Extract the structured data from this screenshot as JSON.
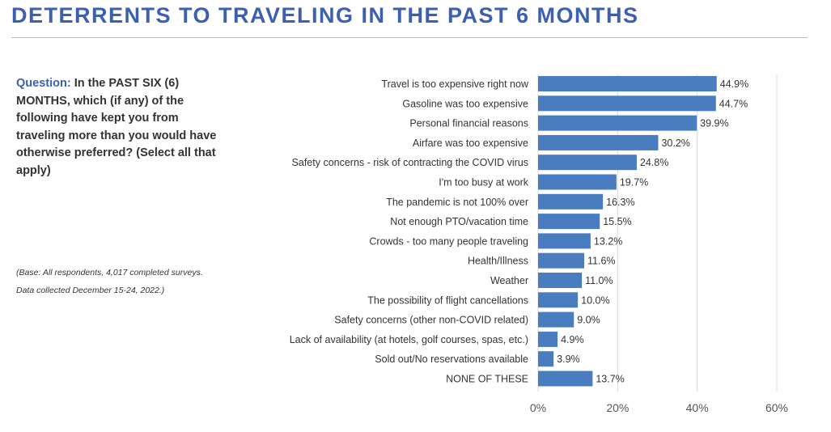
{
  "title": "DETERRENTS TO TRAVELING IN THE PAST 6 MONTHS",
  "question": {
    "label": "Question:",
    "text": "In the PAST SIX (6) MONTHS, which (if any) of the following have kept you from traveling more than you would have otherwise preferred? (Select all that apply)"
  },
  "base_note": {
    "line1": "(Base: All respondents, 4,017 completed surveys.",
    "line2": "Data collected December 15-24, 2022.)"
  },
  "colors": {
    "bar": "#4a7cc0",
    "title": "#3d5fb0",
    "grid": "#d9d9d9"
  },
  "chart_data": {
    "type": "bar",
    "orientation": "horizontal",
    "categories": [
      "Travel is too expensive right now",
      "Gasoline was too expensive",
      "Personal financial reasons",
      "Airfare was too expensive",
      "Safety concerns - risk of contracting the COVID virus",
      "I'm too busy at work",
      "The pandemic is not 100% over",
      "Not enough PTO/vacation time",
      "Crowds - too many people traveling",
      "Health/Illness",
      "Weather",
      "The possibility of flight cancellations",
      "Safety concerns (other non-COVID related)",
      "Lack of availability (at hotels, golf courses, spas, etc.)",
      "Sold out/No reservations available",
      "NONE OF THESE"
    ],
    "values": [
      44.9,
      44.7,
      39.9,
      30.2,
      24.8,
      19.7,
      16.3,
      15.5,
      13.2,
      11.6,
      11.0,
      10.0,
      9.0,
      4.9,
      3.9,
      13.7
    ],
    "value_labels": [
      "44.9%",
      "44.7%",
      "39.9%",
      "30.2%",
      "24.8%",
      "19.7%",
      "16.3%",
      "15.5%",
      "13.2%",
      "11.6%",
      "11.0%",
      "10.0%",
      "9.0%",
      "4.9%",
      "3.9%",
      "13.7%"
    ],
    "xlim": [
      0,
      60
    ],
    "ticks": [
      0,
      20,
      40,
      60
    ],
    "tick_labels": [
      "0%",
      "20%",
      "40%",
      "60%"
    ],
    "grid": true,
    "legend": "none"
  }
}
